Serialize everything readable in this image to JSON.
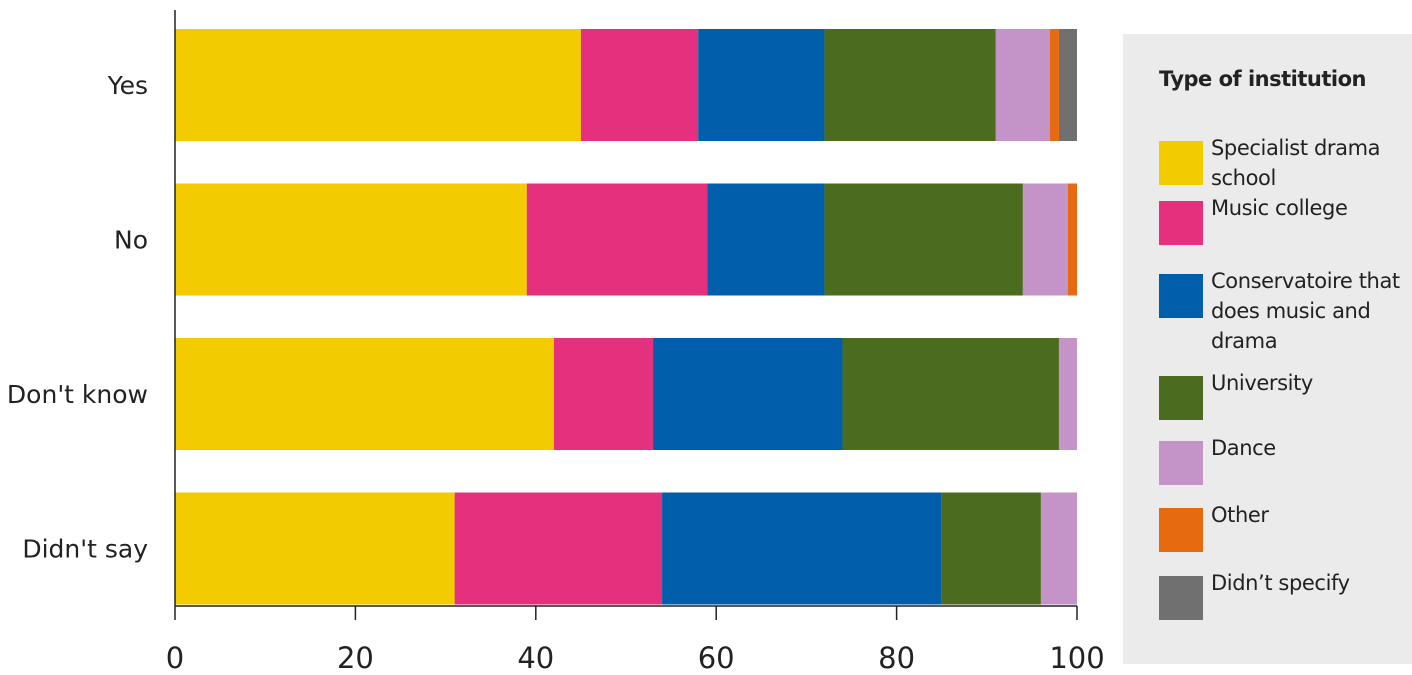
{
  "chart_data": {
    "type": "bar",
    "orientation": "horizontal",
    "stacked": true,
    "categories": [
      "Yes",
      "No",
      "Don't know",
      "Didn't say"
    ],
    "series": [
      {
        "name": "Specialist drama school",
        "color": "#f2cb00",
        "values": [
          45,
          39,
          42,
          31
        ]
      },
      {
        "name": "Music college",
        "color": "#e5307e",
        "values": [
          13,
          20,
          11,
          23
        ]
      },
      {
        "name": "Conservatoire that does music and drama",
        "color": "#005eaa",
        "values": [
          14,
          13,
          21,
          31
        ]
      },
      {
        "name": "University",
        "color": "#4b6b1e",
        "values": [
          19,
          22,
          24,
          11
        ]
      },
      {
        "name": "Dance",
        "color": "#c493c8",
        "values": [
          6,
          5,
          2,
          4
        ]
      },
      {
        "name": "Other",
        "color": "#e66a0f",
        "values": [
          1,
          1,
          0,
          0
        ]
      },
      {
        "name": "Didn’t specify",
        "color": "#707070",
        "values": [
          2,
          0,
          0,
          0
        ]
      }
    ],
    "xlim": [
      0,
      100
    ],
    "xticks": [
      "0",
      "20",
      "40",
      "60",
      "80",
      "100"
    ],
    "grid": false,
    "legend_position": "right"
  },
  "legend": {
    "title": "Type of institution",
    "items": [
      {
        "label": "Specialist drama school",
        "color": "#f2cb00"
      },
      {
        "label": "Music college",
        "color": "#e5307e"
      },
      {
        "label": "Conservatoire that does music and drama",
        "color": "#005eaa"
      },
      {
        "label": "University",
        "color": "#4b6b1e"
      },
      {
        "label": "Dance",
        "color": "#c493c8"
      },
      {
        "label": "Other",
        "color": "#e66a0f"
      },
      {
        "label": "Didn’t specify",
        "color": "#707070"
      }
    ]
  }
}
